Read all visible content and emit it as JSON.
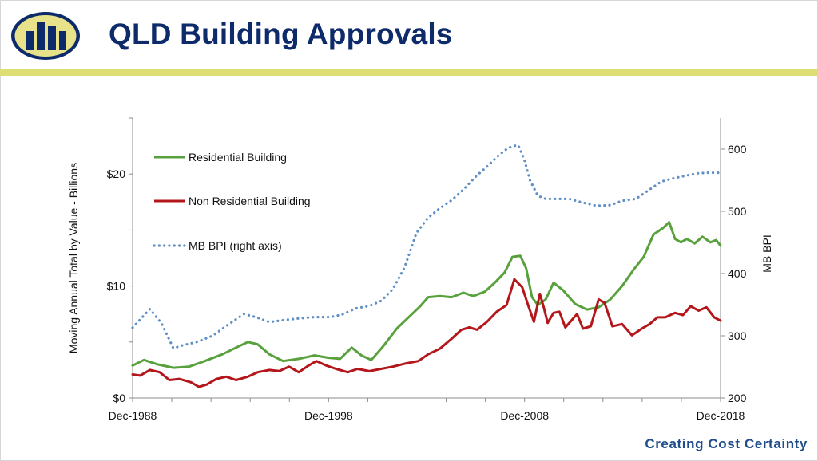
{
  "header": {
    "title": "QLD Building Approvals"
  },
  "footer": {
    "tagline": "Creating Cost Certainty"
  },
  "colors": {
    "brand_navy": "#0d2a6b",
    "logo_yellow": "#e8e38a",
    "rule_yellow": "#dede76",
    "residential": "#58a13c",
    "non_residential": "#b3171c",
    "mb_bpi": "#5f8fc4"
  },
  "chart_data": {
    "type": "line",
    "title": "",
    "xlabel": "",
    "ylabel": "Moving Annual Total by Value - Billions",
    "y2label": "MB BPI",
    "x_ticks": [
      "Dec-1988",
      "Dec-1998",
      "Dec-2008",
      "Dec-2018"
    ],
    "xlim": [
      1988.92,
      2018.92
    ],
    "y_ticks": [
      "$0",
      "$10",
      "$20"
    ],
    "ylim": [
      0,
      25
    ],
    "y2_ticks": [
      "200",
      "300",
      "400",
      "500",
      "600"
    ],
    "y2lim": [
      200,
      650
    ],
    "grid": false,
    "legend_position": "top-left",
    "series": [
      {
        "name": "Residential Building",
        "axis": "left",
        "style": "solid",
        "color": "#58a13c",
        "x": [
          1988.92,
          1989.5,
          1990.2,
          1991.0,
          1991.8,
          1992.6,
          1993.5,
          1994.2,
          1994.8,
          1995.3,
          1995.9,
          1996.6,
          1997.4,
          1998.2,
          1998.9,
          1999.5,
          2000.1,
          2000.6,
          2001.1,
          2001.7,
          2002.4,
          2003.0,
          2003.6,
          2004.0,
          2004.6,
          2005.2,
          2005.8,
          2006.3,
          2006.9,
          2007.4,
          2007.9,
          2008.3,
          2008.7,
          2009.0,
          2009.3,
          2009.6,
          2010.0,
          2010.4,
          2010.9,
          2011.5,
          2012.1,
          2012.7,
          2013.3,
          2013.9,
          2014.5,
          2015.0,
          2015.5,
          2016.0,
          2016.3,
          2016.6,
          2016.9,
          2017.2,
          2017.6,
          2018.0,
          2018.4,
          2018.7,
          2018.92
        ],
        "values": [
          2.9,
          3.4,
          3.0,
          2.7,
          2.8,
          3.3,
          3.9,
          4.5,
          5.0,
          4.8,
          3.9,
          3.3,
          3.5,
          3.8,
          3.6,
          3.5,
          4.5,
          3.8,
          3.4,
          4.6,
          6.2,
          7.2,
          8.2,
          9.0,
          9.1,
          9.0,
          9.4,
          9.1,
          9.5,
          10.3,
          11.2,
          12.6,
          12.7,
          11.6,
          9.0,
          8.3,
          8.8,
          10.3,
          9.6,
          8.4,
          7.9,
          8.1,
          8.8,
          10.0,
          11.5,
          12.6,
          14.6,
          15.2,
          15.7,
          14.2,
          13.9,
          14.2,
          13.8,
          14.4,
          13.9,
          14.1,
          13.6
        ]
      },
      {
        "name": "Non Residential Building",
        "axis": "left",
        "style": "solid",
        "color": "#b3171c",
        "x": [
          1988.92,
          1989.3,
          1989.8,
          1990.3,
          1990.8,
          1991.3,
          1991.9,
          1992.3,
          1992.7,
          1993.2,
          1993.7,
          1994.2,
          1994.8,
          1995.3,
          1995.9,
          1996.4,
          1996.9,
          1997.4,
          1997.9,
          1998.3,
          1998.8,
          1999.3,
          1999.9,
          2000.4,
          2001.0,
          2001.6,
          2002.2,
          2002.9,
          2003.5,
          2004.0,
          2004.6,
          2005.2,
          2005.7,
          2006.1,
          2006.5,
          2007.0,
          2007.5,
          2008.0,
          2008.4,
          2008.8,
          2009.1,
          2009.4,
          2009.7,
          2009.9,
          2010.1,
          2010.4,
          2010.7,
          2011.0,
          2011.3,
          2011.6,
          2011.9,
          2012.3,
          2012.7,
          2013.0,
          2013.4,
          2013.9,
          2014.4,
          2014.9,
          2015.3,
          2015.7,
          2016.1,
          2016.6,
          2017.0,
          2017.4,
          2017.8,
          2018.2,
          2018.6,
          2018.92
        ],
        "values": [
          2.1,
          2.0,
          2.5,
          2.3,
          1.6,
          1.7,
          1.4,
          1.0,
          1.2,
          1.7,
          1.9,
          1.6,
          1.9,
          2.3,
          2.5,
          2.4,
          2.8,
          2.3,
          2.9,
          3.3,
          2.9,
          2.6,
          2.3,
          2.6,
          2.4,
          2.6,
          2.8,
          3.1,
          3.3,
          3.9,
          4.4,
          5.3,
          6.1,
          6.3,
          6.1,
          6.8,
          7.7,
          8.3,
          10.6,
          9.9,
          8.3,
          6.8,
          9.3,
          8.1,
          6.7,
          7.6,
          7.7,
          6.3,
          6.9,
          7.5,
          6.2,
          6.4,
          8.8,
          8.5,
          6.4,
          6.6,
          5.6,
          6.2,
          6.6,
          7.2,
          7.2,
          7.6,
          7.4,
          8.2,
          7.8,
          8.1,
          7.2,
          6.9
        ]
      },
      {
        "name": "MB BPI (right axis)",
        "axis": "right",
        "style": "dotted",
        "color": "#5f8fc4",
        "x": [
          1988.92,
          1989.8,
          1990.4,
          1991.0,
          1991.5,
          1992.2,
          1993.0,
          1993.8,
          1994.6,
          1995.2,
          1995.9,
          1996.6,
          1997.4,
          1998.2,
          1999.0,
          1999.6,
          2000.3,
          2001.0,
          2001.6,
          2002.2,
          2002.8,
          2003.4,
          2004.0,
          2004.6,
          2005.2,
          2005.8,
          2006.4,
          2007.0,
          2007.6,
          2008.0,
          2008.3,
          2008.6,
          2008.9,
          2009.2,
          2009.6,
          2010.0,
          2010.6,
          2011.2,
          2011.9,
          2012.6,
          2013.3,
          2013.9,
          2014.6,
          2015.3,
          2015.9,
          2016.5,
          2017.1,
          2017.7,
          2018.3,
          2018.92
        ],
        "values": [
          313,
          343,
          320,
          280,
          285,
          290,
          300,
          318,
          335,
          330,
          322,
          325,
          328,
          330,
          330,
          334,
          344,
          348,
          356,
          375,
          410,
          465,
          490,
          505,
          518,
          535,
          555,
          572,
          590,
          600,
          605,
          606,
          584,
          550,
          525,
          520,
          520,
          520,
          514,
          509,
          510,
          517,
          520,
          535,
          548,
          553,
          557,
          561,
          562,
          562
        ]
      }
    ]
  }
}
